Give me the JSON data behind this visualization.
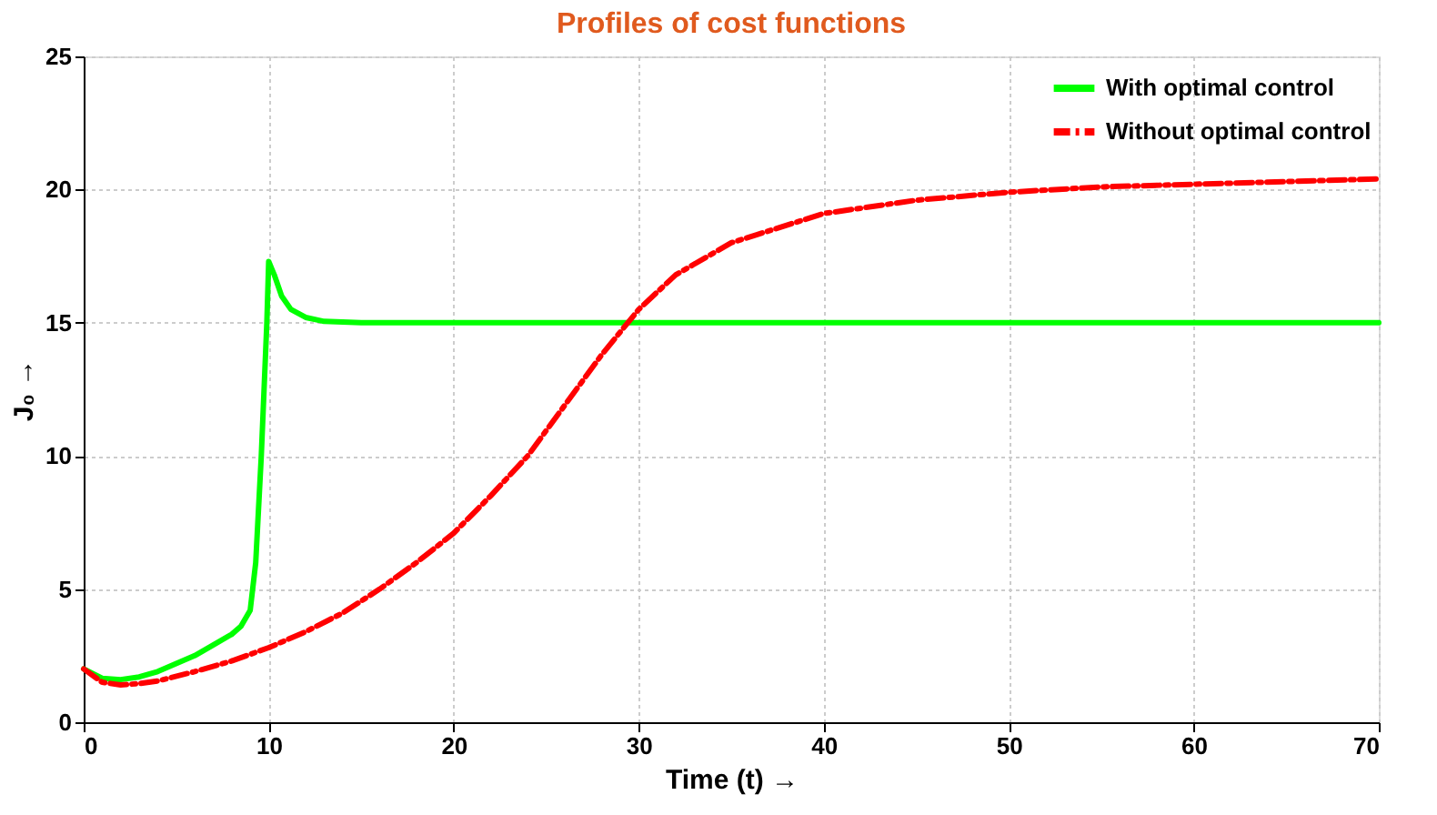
{
  "chart_data": {
    "type": "line",
    "title": "Profiles of cost functions",
    "xlabel": "Time (t) →",
    "ylabel": "J₀ →",
    "xlim": [
      0,
      70
    ],
    "xticks": [
      0,
      10,
      20,
      30,
      40,
      50,
      60,
      70
    ],
    "ylim": [
      0,
      25
    ],
    "yticks": [
      0,
      5,
      10,
      15,
      20,
      25
    ],
    "grid": true,
    "legend": "top right",
    "series": [
      {
        "name": "With optimal control",
        "color": "#00ff00",
        "line_style": "solid",
        "x": [
          0,
          1,
          2,
          3,
          4,
          5,
          6,
          7,
          8,
          8.5,
          9,
          9.3,
          9.6,
          9.9,
          10,
          10.3,
          10.7,
          11.2,
          12,
          13,
          15,
          20,
          30,
          40,
          50,
          60,
          70
        ],
        "values": [
          2,
          1.65,
          1.6,
          1.7,
          1.9,
          2.2,
          2.5,
          2.9,
          3.3,
          3.6,
          4.2,
          6,
          10,
          15,
          17.3,
          16.8,
          16,
          15.5,
          15.2,
          15.05,
          15,
          15,
          15,
          15,
          15,
          15,
          15
        ]
      },
      {
        "name": "Without optimal control",
        "color": "#ff0000",
        "line_style": "dashed",
        "x": [
          0,
          1,
          2,
          3,
          4,
          6,
          8,
          10,
          12,
          14,
          16,
          18,
          20,
          22,
          24,
          26,
          28,
          30,
          32,
          35,
          40,
          45,
          50,
          55,
          60,
          65,
          70
        ],
        "values": [
          2,
          1.5,
          1.4,
          1.45,
          1.55,
          1.9,
          2.3,
          2.8,
          3.4,
          4.1,
          5,
          6,
          7.1,
          8.5,
          10,
          11.9,
          13.8,
          15.5,
          16.8,
          18,
          19.1,
          19.6,
          19.9,
          20.1,
          20.2,
          20.3,
          20.4
        ]
      }
    ]
  }
}
